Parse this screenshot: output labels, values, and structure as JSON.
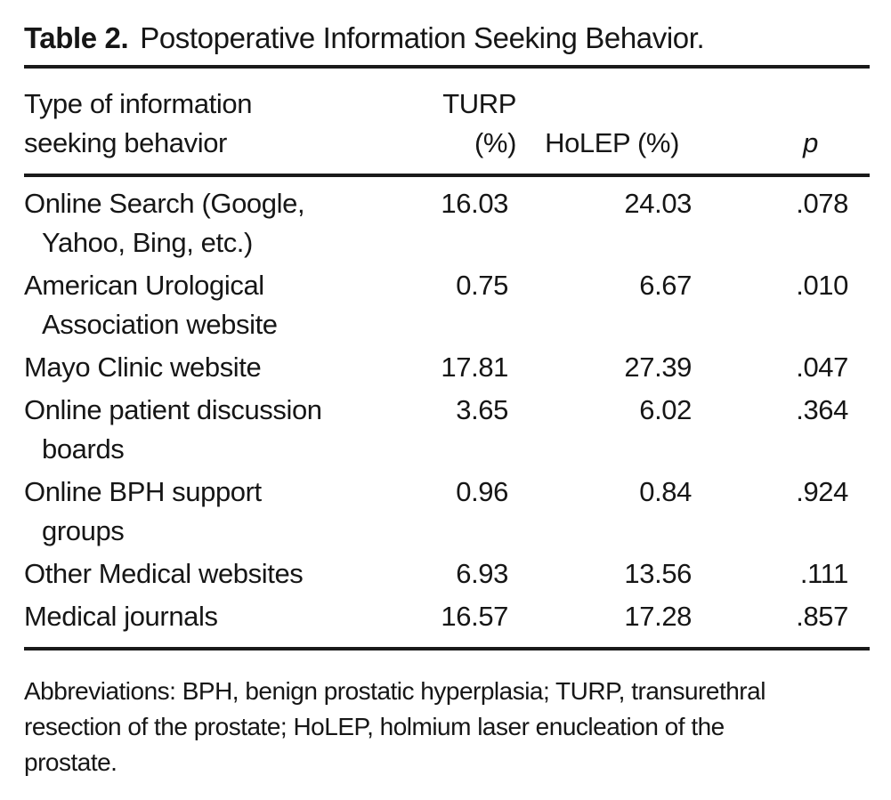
{
  "table": {
    "title_label": "Table 2.",
    "title_text": "Postoperative Information Seeking Behavior.",
    "columns": {
      "behavior": [
        "Type of information",
        "seeking behavior"
      ],
      "turp": "TURP (%)",
      "holep": "HoLEP (%)",
      "p": "p"
    },
    "rows": [
      {
        "behavior": [
          "Online Search (Google,",
          "Yahoo, Bing, etc.)"
        ],
        "turp": "16.03",
        "holep": "24.03",
        "p": ".078"
      },
      {
        "behavior": [
          "American Urological",
          "Association website"
        ],
        "turp": "0.75",
        "holep": "6.67",
        "p": ".010"
      },
      {
        "behavior": [
          "Mayo Clinic website"
        ],
        "turp": "17.81",
        "holep": "27.39",
        "p": ".047"
      },
      {
        "behavior": [
          "Online patient discussion",
          "boards"
        ],
        "turp": "3.65",
        "holep": "6.02",
        "p": ".364"
      },
      {
        "behavior": [
          "Online BPH support",
          "groups"
        ],
        "turp": "0.96",
        "holep": "0.84",
        "p": ".924"
      },
      {
        "behavior": [
          "Other Medical websites"
        ],
        "turp": "6.93",
        "holep": "13.56",
        "p": ".111"
      },
      {
        "behavior": [
          "Medical journals"
        ],
        "turp": "16.57",
        "holep": "17.28",
        "p": ".857"
      }
    ],
    "footnote": [
      "Abbreviations: BPH, benign prostatic hyperplasia; TURP, transurethral",
      "resection of the prostate; HoLEP, holmium laser enucleation of the",
      "prostate."
    ]
  },
  "colors": {
    "text": "#161616",
    "rule": "#1a1a1a",
    "background": "#ffffff"
  }
}
